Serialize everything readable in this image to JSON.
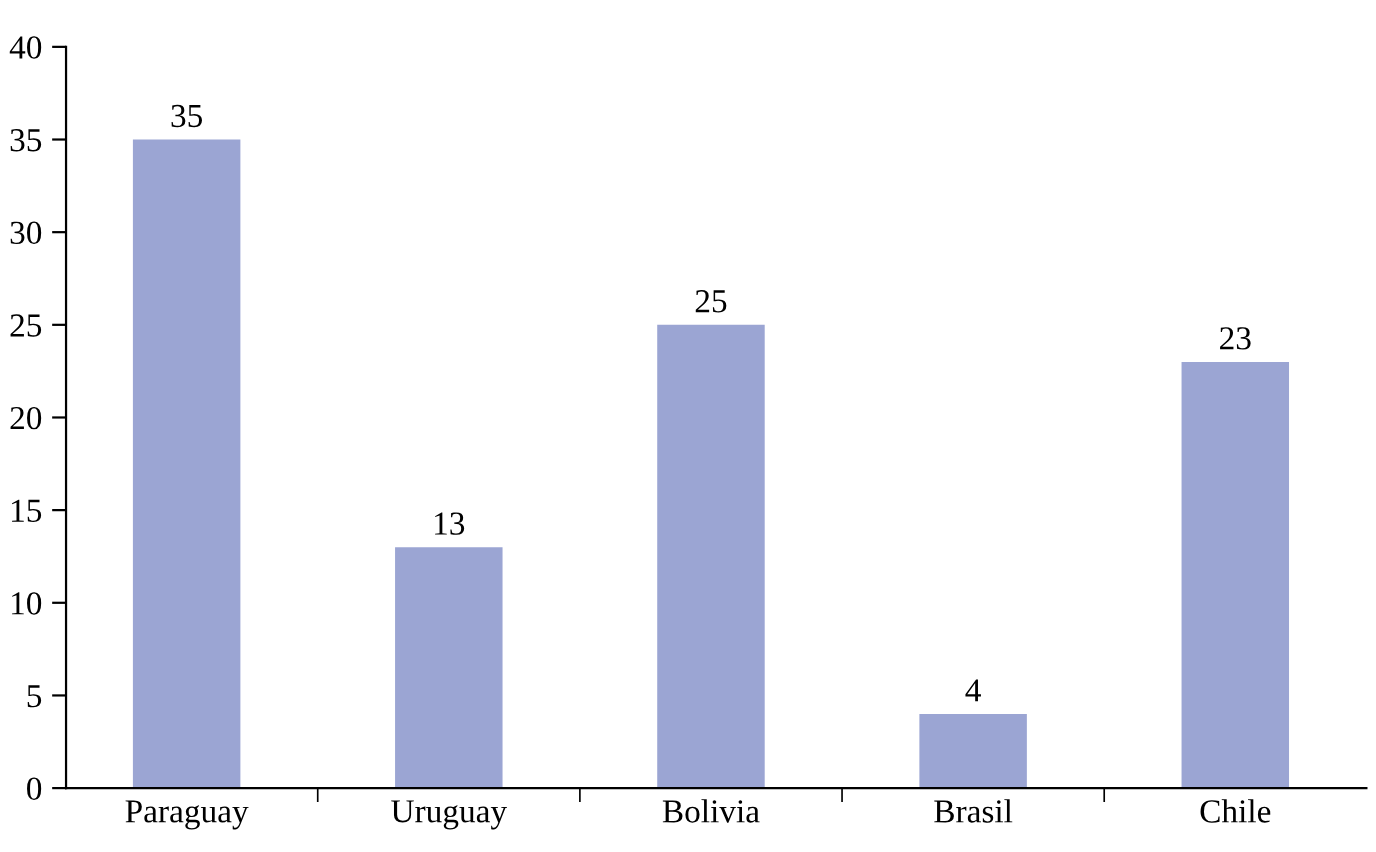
{
  "chart_data": {
    "type": "bar",
    "categories": [
      "Paraguay",
      "Uruguay",
      "Bolivia",
      "Brasil",
      "Chile"
    ],
    "values": [
      35,
      13,
      25,
      4,
      23
    ],
    "color": "#9ba5d3",
    "ylim": [
      0,
      40
    ],
    "yticks": [
      0,
      5,
      10,
      15,
      20,
      25,
      30,
      35,
      40
    ],
    "grid": false,
    "data_labels": true
  }
}
